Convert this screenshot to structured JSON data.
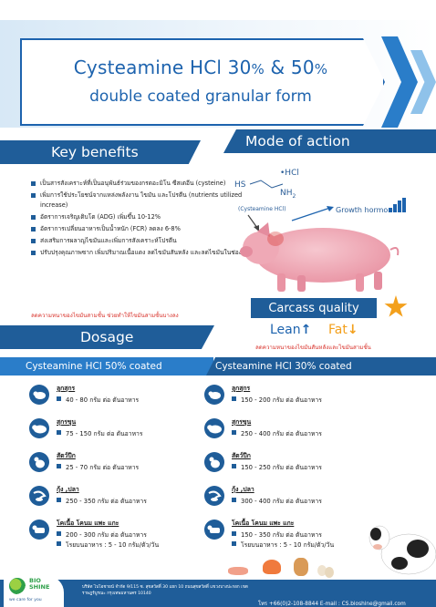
{
  "header": {
    "title_main": "Cysteamine HCl 30",
    "title_pct1": "%",
    "title_amp": " & 50",
    "title_pct2": "%",
    "subtitle": "double coated granular form"
  },
  "key_benefits": {
    "heading": "Key benefits",
    "items": [
      "เป็นสารสังเคราะห์ที่เป็นอนุพันธ์ร่วมของกรดอะมิโน ซีสเตอีน (cysteine)",
      "เพิ่มการใช้ประโยชน์จากแหล่งพลังงาน ไขมัน และโปรตีน (nutrients utilized increase)",
      "อัตราการเจริญเติบโต (ADG) เพิ่มขึ้น 10-12%",
      "อัตราการเปลี่ยนอาหารเป็นน้ำหนัก (FCR) ลดลง 6-8%",
      "ส่งเสริมการผลาญไขมันและเพิ่มการสังเคราะห์โปรตีน",
      "ปรับปรุงคุณภาพซาก เพิ่มปริมาณเนื้อแดง ลดไขมันสันหลัง และลดไขมันในช่องท้อง"
    ],
    "note": "ลดความหนาของไขมันสามชั้น ช่วยทำให้ไขมันสามชั้นบางลง"
  },
  "mode_of_action": {
    "heading": "Mode of action",
    "hs": "HS",
    "hcl": "•HCl",
    "nh2": "NH",
    "nh2_sub": "2",
    "cysteamine_label": "(Cysteamine HCl)",
    "growth_hormone": "Growth hormone"
  },
  "carcass_quality": {
    "heading": "Carcass quality",
    "lean": "Lean",
    "lean_arrow": "↑",
    "fat": "Fat",
    "fat_arrow": "↓",
    "note": "ลดความหนาของไขมันสันหลังและไขมันสามชั้น"
  },
  "dosage": {
    "heading": "Dosage",
    "tab_50": "Cysteamine HCl 50% coated",
    "tab_30": "Cysteamine HCl 30% coated",
    "col_50": [
      {
        "name": "ลูกสุกร",
        "value": "40 - 80   กรัม ต่อ ตันอาหาร",
        "icon": "piglet-icon"
      },
      {
        "name": "สุกรขุน",
        "value": "75 - 150  กรัม ต่อ ตันอาหาร",
        "icon": "pig-icon"
      },
      {
        "name": "สัตว์ปีก",
        "value": "25 - 70   กรัม ต่อ ตันอาหาร",
        "icon": "chicken-icon"
      },
      {
        "name": "กุ้ง ,ปลา",
        "value": "250 - 350  กรัม ต่อ ตันอาหาร",
        "icon": "shrimp-fish-icon"
      },
      {
        "name": "โคเนื้อ โคนม แพะ แกะ",
        "value": "200 - 300  กรัม ต่อ ตันอาหาร",
        "extra": "โรยบนอาหาร : 5 - 10  กรัม/ตัว/วัน",
        "icon": "cattle-icon"
      }
    ],
    "col_30": [
      {
        "name": "ลูกสุกร",
        "value": "150 - 200  กรัม ต่อ ตันอาหาร",
        "icon": "piglet-icon"
      },
      {
        "name": "สุกรขุน",
        "value": "250 - 400  กรัม ต่อ ตันอาหาร",
        "icon": "pig-icon"
      },
      {
        "name": "สัตว์ปีก",
        "value": "150 - 250  กรัม ต่อ ตันอาหาร",
        "icon": "chicken-icon"
      },
      {
        "name": "กุ้ง ,ปลา",
        "value": "300 - 400  กรัม ต่อ ตันอาหาร",
        "icon": "shrimp-fish-icon"
      },
      {
        "name": "โคเนื้อ โคนม แพะ แกะ",
        "value": "150 - 350  กรัม ต่อ ตันอาหาร",
        "extra": "โรยบนอาหาร : 5 - 10  กรัม/ตัว/วัน",
        "icon": "cattle-icon"
      }
    ]
  },
  "footer": {
    "logo_line1": "BIO",
    "logo_line2": "SHINE",
    "tagline": "we care for you",
    "address": "บริษัท ไบโอชายน์ จำกัด 9/115 ซ. สุขสวัสดิ์ 30 แยก 10 ถนนสุขสวัสดิ์ แขวงบางปะกอก เขตราษฎร์บูรณะ กรุงเทพมหานคร 10140",
    "contact": "โทร +66(0)2-108-8844 E-mail : CS.bioshine@gmail.com"
  },
  "colors": {
    "primary": "#1f5d99",
    "accent": "#2a7dc9",
    "warning": "#d8312a",
    "highlight": "#f3a01c"
  }
}
